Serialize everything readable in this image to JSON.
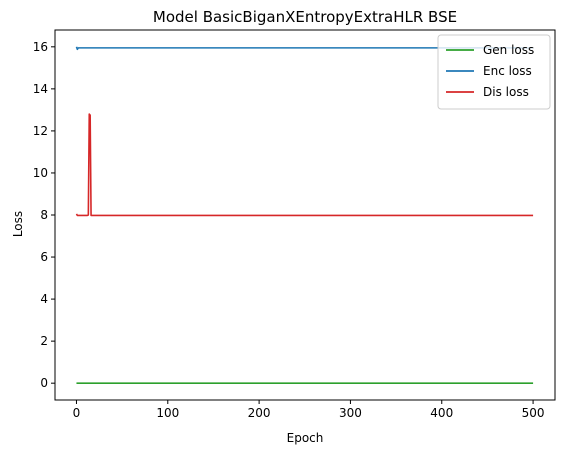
{
  "chart_data": {
    "type": "line",
    "title": "Model BasicBiganXEntropyExtraHLR BSE",
    "xlabel": "Epoch",
    "ylabel": "Loss",
    "xlim": [
      -23.5,
      524
    ],
    "ylim": [
      -0.8,
      16.8
    ],
    "x_ticks": [
      0,
      100,
      200,
      300,
      400,
      500
    ],
    "y_ticks": [
      0,
      2,
      4,
      6,
      8,
      10,
      12,
      14,
      16
    ],
    "grid": false,
    "legend_position": "top-right",
    "series": [
      {
        "name": "Gen loss",
        "color": "#2ca02c",
        "x": [
          0,
          500
        ],
        "y": [
          0.0,
          0.0
        ]
      },
      {
        "name": "Enc loss",
        "color": "#1f77b4",
        "x": [
          0,
          1,
          2,
          500
        ],
        "y": [
          16.0,
          15.88,
          15.95,
          15.95
        ]
      },
      {
        "name": "Dis loss",
        "color": "#d62728",
        "x": [
          0,
          1,
          12,
          13,
          14,
          15,
          16,
          500
        ],
        "y": [
          8.05,
          7.98,
          7.98,
          8.0,
          12.8,
          12.75,
          7.98,
          7.98
        ]
      }
    ]
  }
}
